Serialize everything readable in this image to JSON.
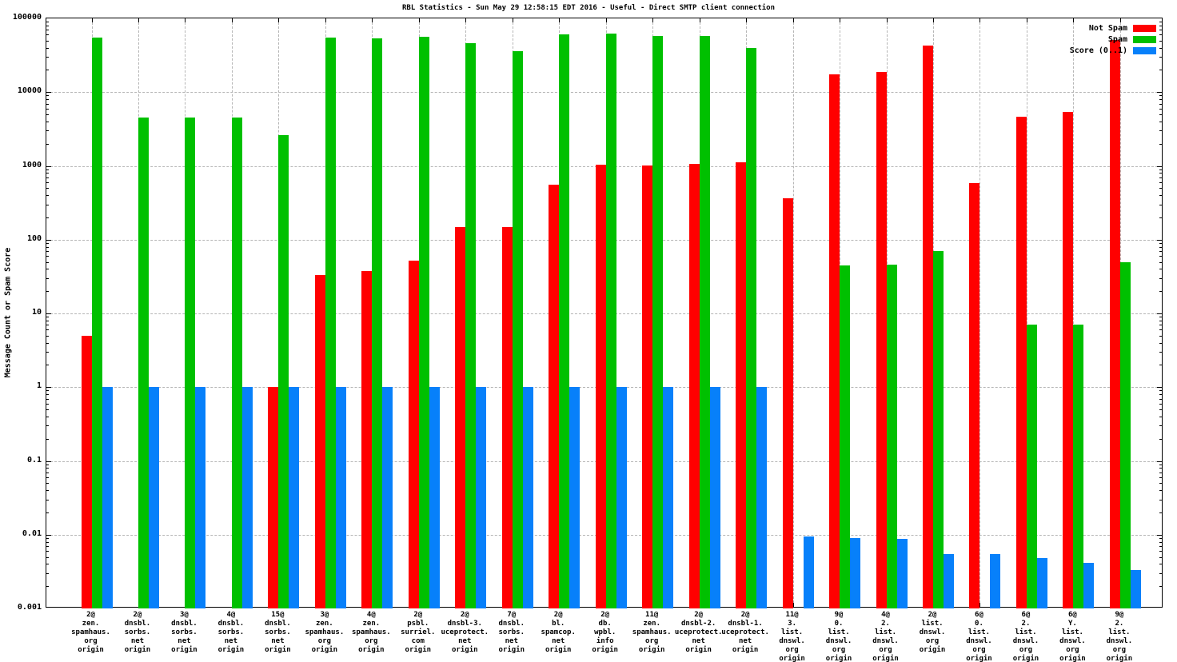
{
  "chart_data": {
    "type": "bar",
    "title": "RBL Statistics - Sun May 29 12:58:15 EDT 2016 - Useful - Direct SMTP client connection",
    "ylabel": "Message Count or Spam Score",
    "xlabel": "",
    "yscale": "log",
    "ylim": [
      0.001,
      100000
    ],
    "ytick_labels": [
      "100000",
      "10000",
      "1000",
      "100",
      "10",
      "1",
      "0.1",
      "0.01",
      "0.001"
    ],
    "grid": true,
    "legend_position": "top-right-inside",
    "categories": [
      "2@\nzen.\nspamhaus.\norg\norigin",
      "2@\ndnsbl.\nsorbs.\nnet\norigin",
      "3@\ndnsbl.\nsorbs.\nnet\norigin",
      "4@\ndnsbl.\nsorbs.\nnet\norigin",
      "15@\ndnsbl.\nsorbs.\nnet\norigin",
      "3@\nzen.\nspamhaus.\norg\norigin",
      "4@\nzen.\nspamhaus.\norg\norigin",
      "2@\npsbl.\nsurriel.\ncom\norigin",
      "2@\ndnsbl-3.\nuceprotect.\nnet\norigin",
      "7@\ndnsbl.\nsorbs.\nnet\norigin",
      "2@\nbl.\nspamcop.\nnet\norigin",
      "2@\ndb.\nwpbl.\ninfo\norigin",
      "11@\nzen.\nspamhaus.\norg\norigin",
      "2@\ndnsbl-2.\nuceprotect.\nnet\norigin",
      "2@\ndnsbl-1.\nuceprotect.\nnet\norigin",
      "11@\n3.\nlist.\ndnswl.\norg\norigin",
      "9@\n0.\nlist.\ndnswl.\norg\norigin",
      "4@\n2.\nlist.\ndnswl.\norg\norigin",
      "2@\nlist.\ndnswl.\norg\norigin",
      "6@\n0.\nlist.\ndnswl.\norg\norigin",
      "6@\n2.\nlist.\ndnswl.\norg\norigin",
      "6@\nY.\nlist.\ndnswl.\norg\norigin",
      "9@\n2.\nlist.\ndnswl.\norg\norigin"
    ],
    "series": [
      {
        "name": "Not Spam",
        "color": "#ff0000",
        "values": [
          5,
          0,
          0,
          0,
          1,
          33,
          38,
          52,
          150,
          150,
          560,
          1050,
          1020,
          1060,
          1120,
          360,
          17500,
          19000,
          43000,
          580,
          4600,
          5400,
          51000
        ]
      },
      {
        "name": "Spam",
        "color": "#00c000",
        "values": [
          55000,
          4500,
          4500,
          4500,
          2600,
          55000,
          54000,
          57000,
          46000,
          36000,
          60000,
          62000,
          58000,
          58000,
          40000,
          0,
          45,
          46,
          70,
          0,
          7,
          7,
          50
        ]
      },
      {
        "name": "Score (0..1)",
        "color": "#0780fa",
        "values": [
          1,
          1,
          1,
          1,
          1,
          1,
          1,
          1,
          1,
          1,
          1,
          1,
          1,
          1,
          1,
          0.0095,
          0.009,
          0.0087,
          0.0055,
          0.0055,
          0.0048,
          0.0042,
          0.0033
        ]
      }
    ]
  }
}
